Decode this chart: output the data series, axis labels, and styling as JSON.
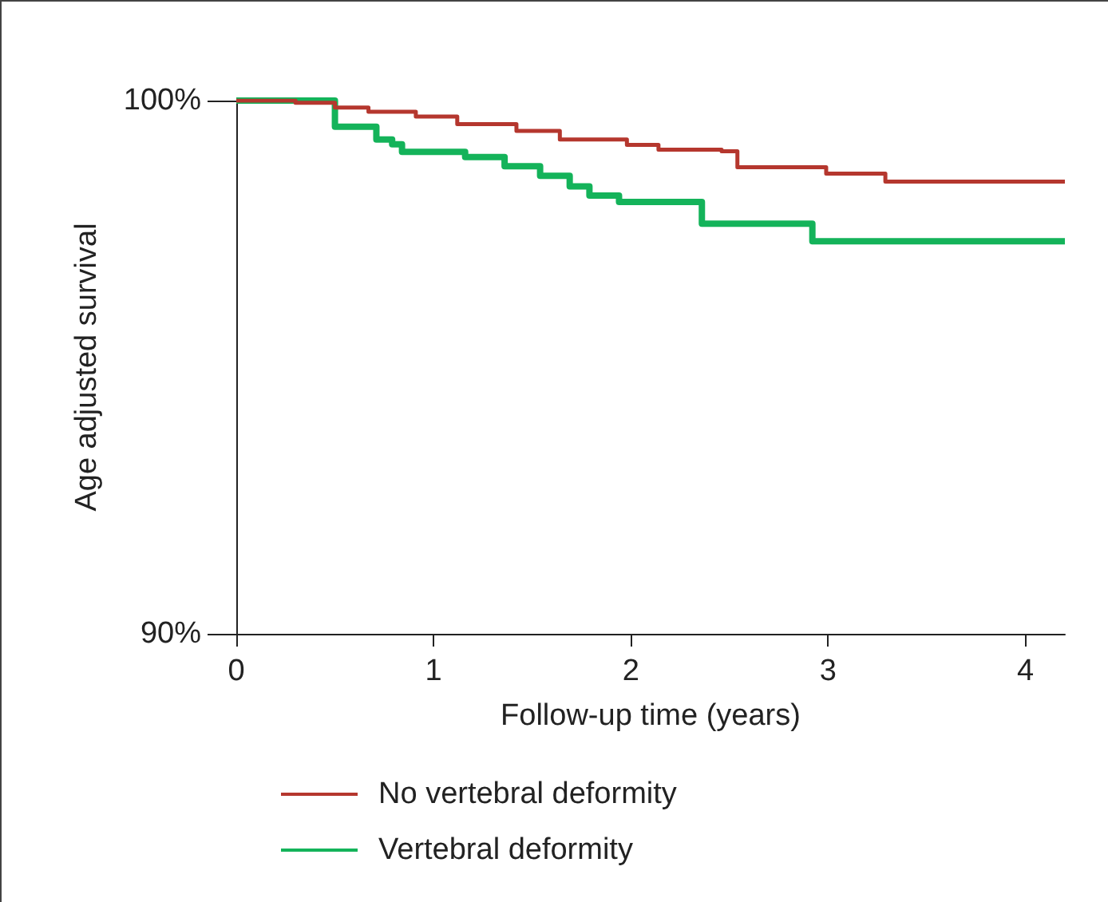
{
  "chart_data": {
    "type": "step",
    "xlabel": "Follow-up time (years)",
    "ylabel": "Age adjusted survival",
    "xlim": [
      0,
      4.2
    ],
    "xticks": [
      0,
      1,
      2,
      3,
      4
    ],
    "ylim": [
      90,
      100
    ],
    "yticks": [
      {
        "value": 90,
        "label": "90%"
      },
      {
        "value": 100,
        "label": "100%"
      }
    ],
    "grid": false,
    "legend": "bottom left",
    "marker": "none",
    "line_style": "solid",
    "series": [
      {
        "name": "No vertebral deformity",
        "color": "#b5372e",
        "x": [
          0,
          0.3,
          0.5,
          0.67,
          0.91,
          1.12,
          1.42,
          1.64,
          1.98,
          2.14,
          2.46,
          2.54,
          2.99,
          3.29,
          4.2
        ],
        "values": [
          100,
          99.96,
          99.87,
          99.79,
          99.7,
          99.56,
          99.43,
          99.27,
          99.17,
          99.08,
          99.05,
          98.75,
          98.63,
          98.48,
          98.48
        ]
      },
      {
        "name": "Vertebral deformity",
        "color": "#14b35a",
        "x": [
          0,
          0.3,
          0.5,
          0.71,
          0.79,
          0.84,
          1.16,
          1.36,
          1.54,
          1.69,
          1.79,
          1.94,
          2.36,
          2.92,
          4.2
        ],
        "values": [
          100,
          100,
          99.51,
          99.27,
          99.18,
          99.04,
          98.94,
          98.77,
          98.59,
          98.39,
          98.22,
          98.1,
          97.69,
          97.36,
          97.36
        ]
      }
    ]
  }
}
